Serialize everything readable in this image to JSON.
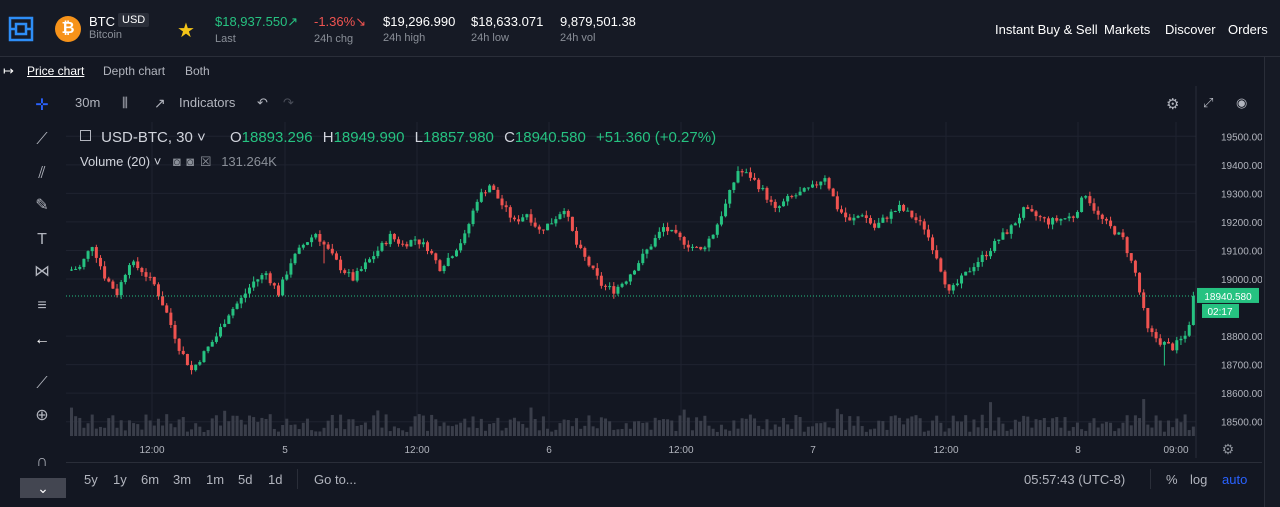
{
  "header": {
    "symbol": "BTC",
    "quote": "USD",
    "coin_name": "Bitcoin",
    "coin_icon": "bitcoin-icon",
    "last": "$18,937.550↗",
    "last_label": "Last",
    "chg": "-1.36%↘",
    "chg_label": "24h chg",
    "high": "$19,296.990",
    "high_label": "24h high",
    "low": "$18,633.071",
    "low_label": "24h low",
    "vol": "9,879,501.38",
    "vol_label": "24h vol",
    "nav": [
      "Instant Buy & Sell",
      "Markets",
      "Discover",
      "Orders"
    ]
  },
  "subtabs": [
    "Price chart",
    "Depth chart",
    "Both"
  ],
  "chart_toolbar": {
    "interval": "30m",
    "indicators": "Indicators"
  },
  "legend": {
    "pair": "USD-BTC, 30",
    "o_label": "O",
    "o": "18893.296",
    "h_label": "H",
    "h": "18949.990",
    "l_label": "L",
    "l": "18857.980",
    "c_label": "C",
    "c": "18940.580",
    "change": "+51.360 (+0.27%)",
    "volume_label": "Volume (20)",
    "volume_value": "131.264K"
  },
  "price_axis": {
    "labels": [
      "19500.000",
      "19400.000",
      "19300.000",
      "19200.000",
      "19100.000",
      "19000.000",
      "18800.000",
      "18700.000",
      "18600.000",
      "18500.000"
    ],
    "current_price": "18940.580",
    "countdown": "02:17"
  },
  "time_axis": {
    "labels": [
      "12:00",
      "5",
      "12:00",
      "6",
      "12:00",
      "7",
      "12:00",
      "8",
      "09:00"
    ]
  },
  "bottom_bar": {
    "ranges": [
      "5y",
      "1y",
      "6m",
      "3m",
      "1m",
      "5d",
      "1d"
    ],
    "goto": "Go to...",
    "clock": "05:57:43 (UTC-8)",
    "pct": "%",
    "log": "log",
    "auto": "auto"
  },
  "colors": {
    "up": "#26c281",
    "down": "#ef5350",
    "background": "#131722",
    "accent": "#2962ff"
  },
  "chart_data": {
    "type": "candlestick",
    "ylim": [
      18450,
      19550
    ],
    "x_ticks": [
      "12:00",
      "5",
      "12:00",
      "6",
      "12:00",
      "7",
      "12:00",
      "8",
      "09:00"
    ],
    "y_ticks": [
      19500,
      19400,
      19300,
      19200,
      19100,
      19000,
      18800,
      18700,
      18600,
      18500
    ],
    "current_price": 18940.58,
    "close_path": [
      [
        0,
        19030
      ],
      [
        6,
        19040
      ],
      [
        12,
        19120
      ],
      [
        18,
        19010
      ],
      [
        24,
        18950
      ],
      [
        30,
        19060
      ],
      [
        36,
        19030
      ],
      [
        42,
        18980
      ],
      [
        48,
        18880
      ],
      [
        54,
        18760
      ],
      [
        60,
        18680
      ],
      [
        66,
        18740
      ],
      [
        72,
        18800
      ],
      [
        78,
        18880
      ],
      [
        84,
        18930
      ],
      [
        90,
        18990
      ],
      [
        96,
        19020
      ],
      [
        102,
        18950
      ],
      [
        108,
        19060
      ],
      [
        114,
        19120
      ],
      [
        120,
        19160
      ],
      [
        126,
        19100
      ],
      [
        132,
        19040
      ],
      [
        138,
        19000
      ],
      [
        144,
        19050
      ],
      [
        150,
        19100
      ],
      [
        156,
        19150
      ],
      [
        162,
        19120
      ],
      [
        168,
        19140
      ],
      [
        174,
        19110
      ],
      [
        180,
        19040
      ],
      [
        186,
        19090
      ],
      [
        192,
        19150
      ],
      [
        198,
        19280
      ],
      [
        204,
        19330
      ],
      [
        210,
        19260
      ],
      [
        216,
        19200
      ],
      [
        222,
        19230
      ],
      [
        228,
        19170
      ],
      [
        234,
        19200
      ],
      [
        240,
        19250
      ],
      [
        246,
        19120
      ],
      [
        252,
        19050
      ],
      [
        258,
        18980
      ],
      [
        264,
        18960
      ],
      [
        270,
        19000
      ],
      [
        276,
        19060
      ],
      [
        282,
        19120
      ],
      [
        288,
        19180
      ],
      [
        294,
        19150
      ],
      [
        300,
        19120
      ],
      [
        306,
        19100
      ],
      [
        312,
        19160
      ],
      [
        318,
        19260
      ],
      [
        324,
        19380
      ],
      [
        330,
        19360
      ],
      [
        336,
        19310
      ],
      [
        342,
        19240
      ],
      [
        348,
        19280
      ],
      [
        354,
        19300
      ],
      [
        360,
        19320
      ],
      [
        366,
        19360
      ],
      [
        372,
        19250
      ],
      [
        378,
        19200
      ],
      [
        384,
        19230
      ],
      [
        390,
        19180
      ],
      [
        396,
        19220
      ],
      [
        402,
        19250
      ],
      [
        408,
        19220
      ],
      [
        414,
        19180
      ],
      [
        420,
        19080
      ],
      [
        426,
        18950
      ],
      [
        432,
        19000
      ],
      [
        438,
        19050
      ],
      [
        444,
        19090
      ],
      [
        450,
        19140
      ],
      [
        456,
        19180
      ],
      [
        462,
        19240
      ],
      [
        468,
        19220
      ],
      [
        474,
        19200
      ],
      [
        480,
        19210
      ],
      [
        486,
        19220
      ],
      [
        492,
        19300
      ],
      [
        498,
        19220
      ],
      [
        504,
        19180
      ],
      [
        510,
        19140
      ],
      [
        516,
        19020
      ],
      [
        522,
        18820
      ],
      [
        528,
        18780
      ],
      [
        534,
        18760
      ],
      [
        540,
        18800
      ],
      [
        546,
        18940
      ]
    ]
  }
}
